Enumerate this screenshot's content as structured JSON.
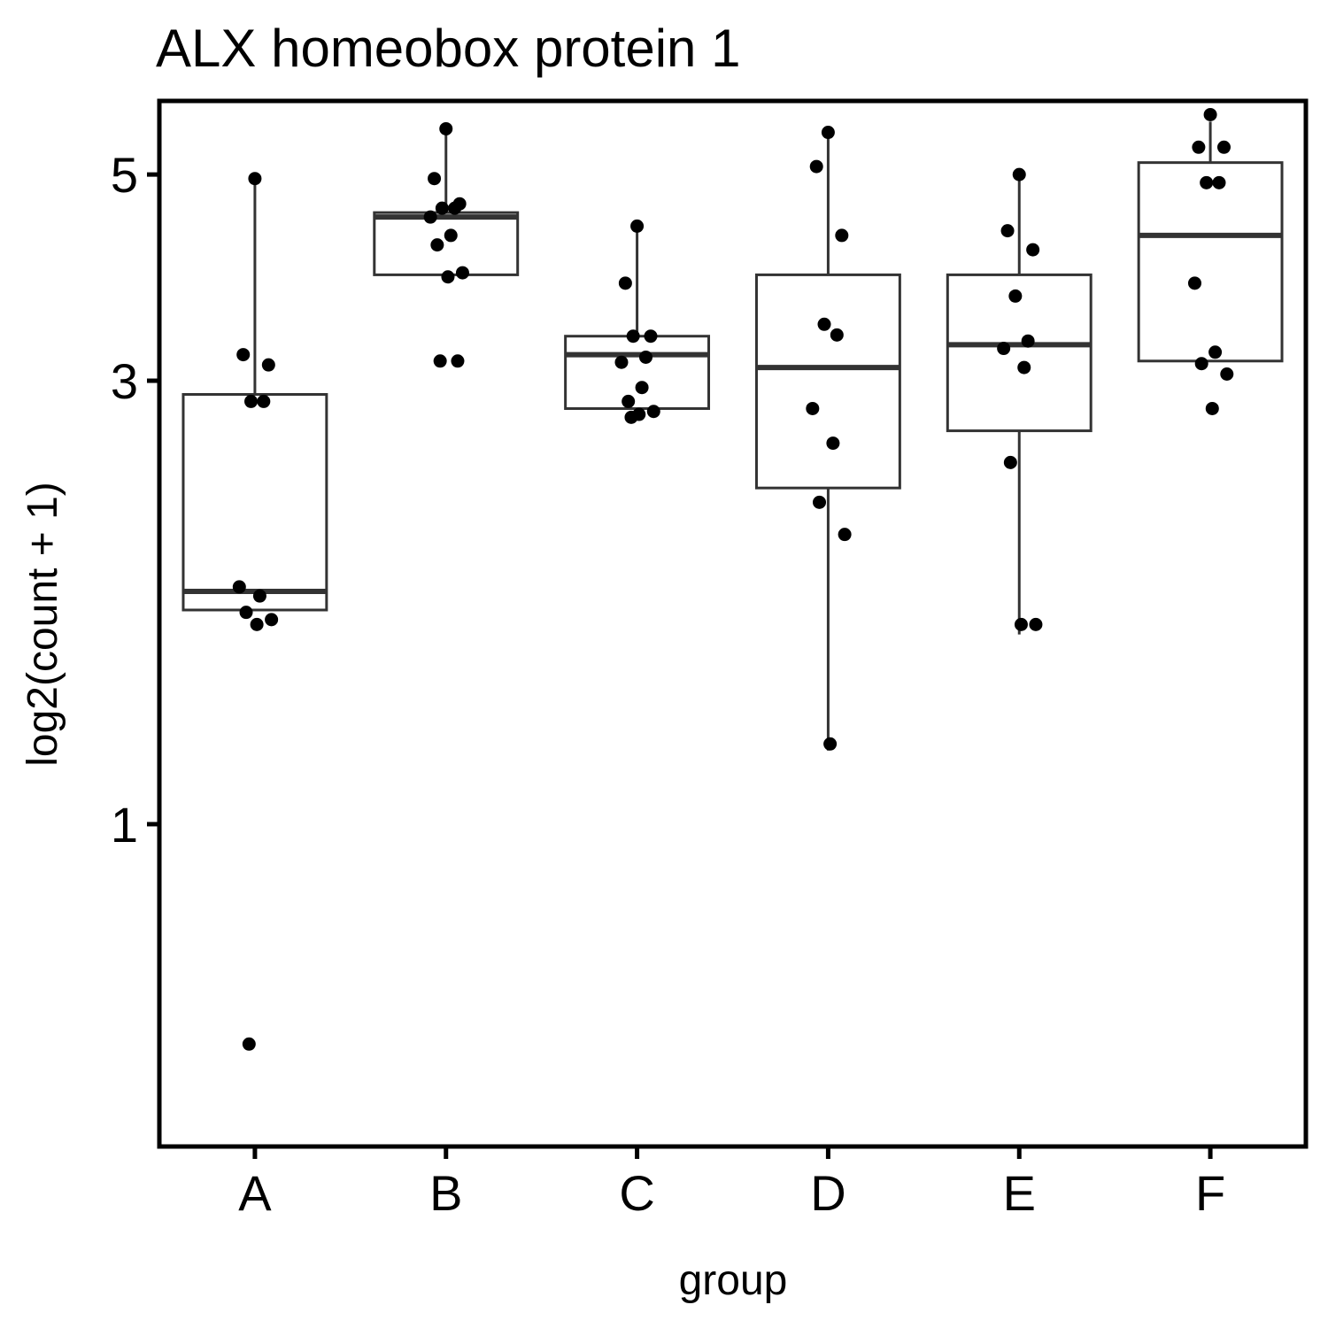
{
  "chart_data": {
    "type": "box",
    "title": "ALX homeobox protein 1",
    "xlabel": "group",
    "ylabel": "log2(count + 1)",
    "y_scale": "log",
    "ylim": [
      0.45,
      6.0
    ],
    "yticks": [
      1,
      3,
      5
    ],
    "categories": [
      "A",
      "B",
      "C",
      "D",
      "E",
      "F"
    ],
    "boxes": [
      {
        "group": "A",
        "whisker_low": 1.7,
        "q1": 1.7,
        "median": 1.78,
        "q3": 2.9,
        "whisker_high": 4.9
      },
      {
        "group": "B",
        "whisker_low": 3.9,
        "q1": 3.9,
        "median": 4.5,
        "q3": 4.55,
        "whisker_high": 5.6
      },
      {
        "group": "C",
        "whisker_low": 2.8,
        "q1": 2.8,
        "median": 3.2,
        "q3": 3.35,
        "whisker_high": 4.4
      },
      {
        "group": "D",
        "whisker_low": 1.2,
        "q1": 2.3,
        "median": 3.1,
        "q3": 3.9,
        "whisker_high": 5.5
      },
      {
        "group": "E",
        "whisker_low": 1.6,
        "q1": 2.65,
        "median": 3.28,
        "q3": 3.9,
        "whisker_high": 5.0
      },
      {
        "group": "F",
        "whisker_low": 3.15,
        "q1": 3.15,
        "median": 4.3,
        "q3": 5.15,
        "whisker_high": 5.7
      }
    ],
    "points": [
      {
        "group": "A",
        "values": [
          4.95,
          3.2,
          3.12,
          2.85,
          2.85,
          1.8,
          1.76,
          1.69,
          1.66,
          1.64,
          0.58
        ]
      },
      {
        "group": "B",
        "values": [
          5.6,
          4.95,
          4.65,
          4.6,
          4.6,
          4.5,
          4.3,
          4.2,
          3.92,
          3.88,
          3.15,
          3.15
        ]
      },
      {
        "group": "C",
        "values": [
          4.4,
          3.82,
          3.35,
          3.35,
          3.18,
          3.14,
          2.95,
          2.85,
          2.78,
          2.76,
          2.74
        ]
      },
      {
        "group": "D",
        "values": [
          5.55,
          5.1,
          4.3,
          3.45,
          3.36,
          2.8,
          2.57,
          2.22,
          2.05,
          1.22
        ]
      },
      {
        "group": "E",
        "values": [
          5.0,
          4.35,
          4.15,
          3.7,
          3.31,
          3.25,
          3.1,
          2.45,
          1.64,
          1.64
        ]
      },
      {
        "group": "F",
        "values": [
          5.8,
          5.35,
          5.35,
          4.9,
          4.9,
          3.82,
          3.22,
          3.13,
          3.05,
          2.8
        ]
      }
    ]
  }
}
